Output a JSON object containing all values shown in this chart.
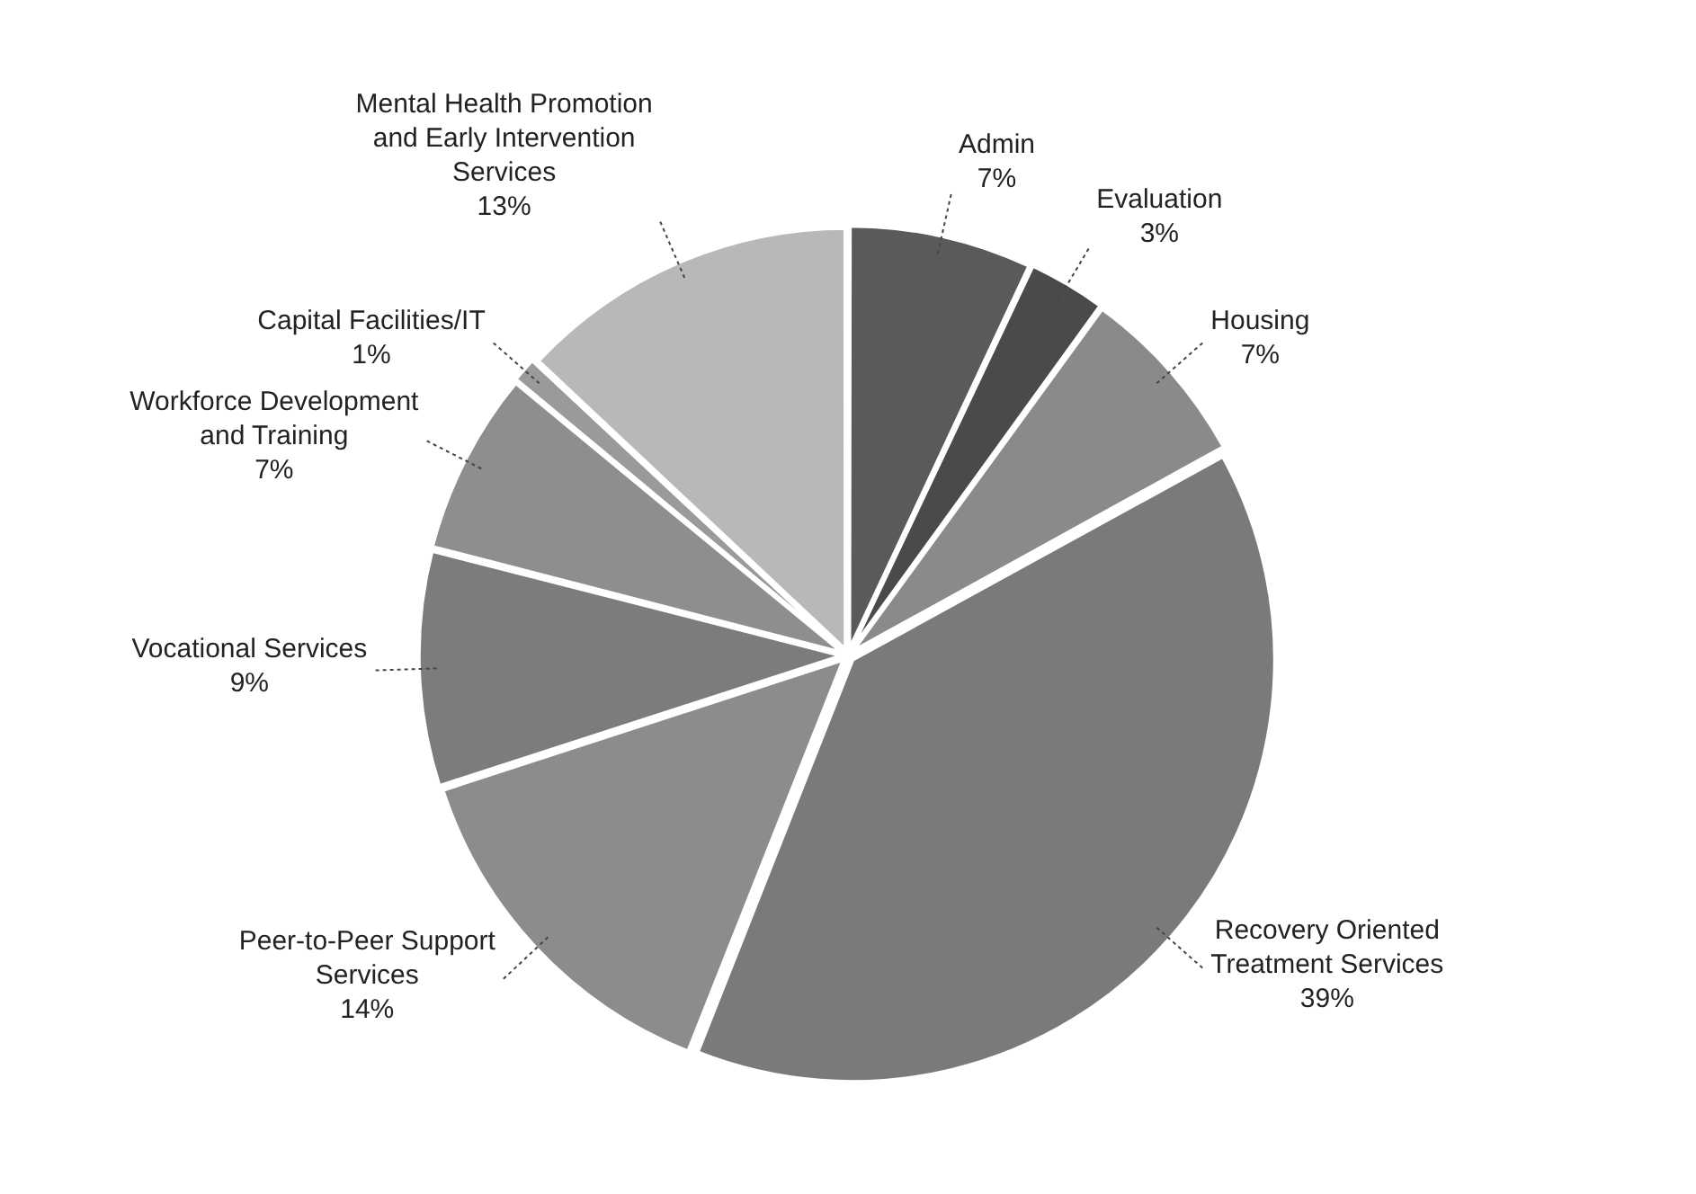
{
  "chart_data": {
    "type": "pie",
    "categories": [
      "Admin",
      "Evaluation",
      "Housing",
      "Recovery Oriented Treatment Services",
      "Peer-to-Peer Support Services",
      "Vocational Services",
      "Workforce Development and Training",
      "Capital Facilities/IT",
      "Mental Health Promotion and Early Intervention Services"
    ],
    "values": [
      7,
      3,
      7,
      39,
      14,
      9,
      7,
      1,
      13
    ],
    "value_labels": [
      "7%",
      "3%",
      "7%",
      "39%",
      "14%",
      "9%",
      "7%",
      "1%",
      "13%"
    ],
    "colors": [
      "#5a5a5a",
      "#4a4a4a",
      "#8a8a8a",
      "#7a7a7a",
      "#8c8c8c",
      "#7c7c7c",
      "#8e8e8e",
      "#9a9a9a",
      "#b8b8b8"
    ],
    "legend": false
  }
}
